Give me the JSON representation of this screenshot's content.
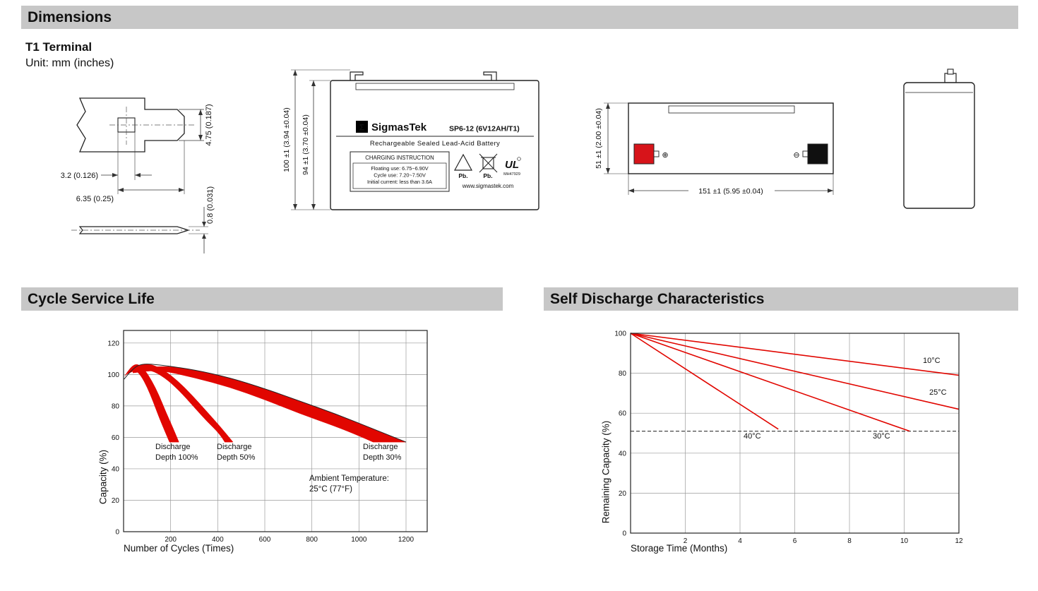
{
  "page": {
    "bg": "#ffffff",
    "header_bar_color": "#c7c7c7",
    "accent_red": "#e10600"
  },
  "sections": {
    "dimensions": "Dimensions",
    "cycle_service_life": "Cycle Service Life",
    "self_discharge": "Self Discharge Characteristics"
  },
  "dimensions_block": {
    "terminal_type": "T1 Terminal",
    "unit_note": "Unit: mm (inches)",
    "terminal_detail": {
      "dim_tab_height": "4.75 (0.187)",
      "dim_slot_width": "3.2 (0.126)",
      "dim_tab_width": "6.35 (0.25)",
      "dim_tab_thickness": "0.8 (0.031)"
    },
    "front_view": {
      "dim_overall_height": "100 ±1 (3.94 ±0.04)",
      "dim_case_height": "94 ±1 (3.70 ±0.04)",
      "sigma": "Σ",
      "brand": "SigmasTek",
      "model": "SP6-12 (6V12AH/T1)",
      "battery_type": "Rechargeable Sealed Lead-Acid Battery",
      "charging_title": "CHARGING INSTRUCTION",
      "charging_line1": "Floating use: 6.75~6.90V",
      "charging_line2": "Cycle use: 7.20~7.50V",
      "charging_line3": "Initial current: less than 3.6A",
      "pb_recycle": "Pb.",
      "pb_trash": "Pb.",
      "ul_text": "UL",
      "ul_number": "MH47929",
      "website": "www.sigmastek.com"
    },
    "side_view": {
      "dim_width": "51 ±1 (2.00 ±0.04)",
      "dim_length": "151 ±1 (5.95 ±0.04)",
      "plus_symbol": "⊕",
      "minus_symbol": "⊖"
    }
  },
  "chart_data": [
    {
      "type": "area",
      "title": "Cycle Service Life",
      "xlabel": "Number of Cycles (Times)",
      "ylabel": "Capacity (%)",
      "xlim": [
        0,
        1290
      ],
      "ylim": [
        0,
        128
      ],
      "x_ticks": [
        200,
        400,
        600,
        800,
        1000,
        1200
      ],
      "y_ticks": [
        0,
        20,
        40,
        60,
        80,
        100,
        120
      ],
      "grid": true,
      "legend_position": "none",
      "series_color": "#e10600",
      "bands": [
        {
          "name": "Discharge Depth 100%",
          "upper": [
            [
              5,
              99
            ],
            [
              30,
              105
            ],
            [
              60,
              107
            ],
            [
              90,
              103
            ],
            [
              120,
              96
            ],
            [
              150,
              87
            ],
            [
              180,
              76
            ],
            [
              210,
              66
            ],
            [
              235,
              57
            ]
          ],
          "lower": [
            [
              5,
              99
            ],
            [
              25,
              102
            ],
            [
              50,
              103
            ],
            [
              75,
              99
            ],
            [
              100,
              92
            ],
            [
              125,
              83
            ],
            [
              150,
              73
            ],
            [
              175,
              64
            ],
            [
              195,
              57
            ]
          ]
        },
        {
          "name": "Discharge Depth 50%",
          "upper": [
            [
              10,
              100
            ],
            [
              60,
              106
            ],
            [
              110,
              107
            ],
            [
              170,
              103
            ],
            [
              230,
              96
            ],
            [
              290,
              87
            ],
            [
              350,
              77
            ],
            [
              410,
              67
            ],
            [
              465,
              57
            ]
          ],
          "lower": [
            [
              10,
              100
            ],
            [
              55,
              103
            ],
            [
              115,
              103
            ],
            [
              175,
              98
            ],
            [
              235,
              90
            ],
            [
              295,
              80
            ],
            [
              355,
              70
            ],
            [
              410,
              62
            ],
            [
              430,
              57
            ]
          ]
        },
        {
          "name": "Discharge Depth 30%",
          "upper": [
            [
              40,
              103
            ],
            [
              150,
              106
            ],
            [
              300,
              103
            ],
            [
              450,
              98
            ],
            [
              600,
              91
            ],
            [
              750,
              83
            ],
            [
              900,
              75
            ],
            [
              1050,
              66
            ],
            [
              1200,
              57
            ]
          ],
          "lower": [
            [
              40,
              101
            ],
            [
              150,
              103
            ],
            [
              300,
              98
            ],
            [
              450,
              92
            ],
            [
              600,
              84
            ],
            [
              750,
              75
            ],
            [
              900,
              67
            ],
            [
              1000,
              61
            ],
            [
              1060,
              57
            ]
          ]
        }
      ],
      "outline": [
        [
          2,
          97
        ],
        [
          40,
          104
        ],
        [
          80,
          107
        ],
        [
          160,
          106
        ],
        [
          300,
          103
        ],
        [
          450,
          98
        ],
        [
          600,
          91
        ],
        [
          750,
          83
        ],
        [
          900,
          75
        ],
        [
          1050,
          66
        ],
        [
          1200,
          57
        ]
      ],
      "annotations": [
        {
          "text": "Discharge\nDepth 100%"
        },
        {
          "text": "Discharge\nDepth 50%"
        },
        {
          "text": "Discharge\nDepth 30%"
        },
        {
          "text": "Ambient Temperature:\n25°C (77°F)"
        }
      ]
    },
    {
      "type": "line",
      "title": "Self Discharge Characteristics",
      "xlabel": "Storage Time (Months)",
      "ylabel": "Remaining Capacity (%)",
      "xlim": [
        0,
        12
      ],
      "ylim": [
        0,
        100
      ],
      "x_ticks": [
        2,
        4,
        6,
        8,
        10,
        12
      ],
      "y_ticks": [
        0,
        20,
        40,
        60,
        80,
        100
      ],
      "grid": true,
      "legend_position": "inline",
      "series_color": "#e10600",
      "lines": [
        {
          "name": "10°C",
          "points": [
            [
              0,
              100
            ],
            [
              12,
              79
            ]
          ]
        },
        {
          "name": "25°C",
          "points": [
            [
              0,
              100
            ],
            [
              12,
              62
            ]
          ]
        },
        {
          "name": "30°C",
          "points": [
            [
              0,
              100
            ],
            [
              10.2,
              51
            ]
          ]
        },
        {
          "name": "40°C",
          "points": [
            [
              0,
              100
            ],
            [
              5.4,
              52
            ]
          ]
        }
      ],
      "dashed_y": 51
    }
  ]
}
